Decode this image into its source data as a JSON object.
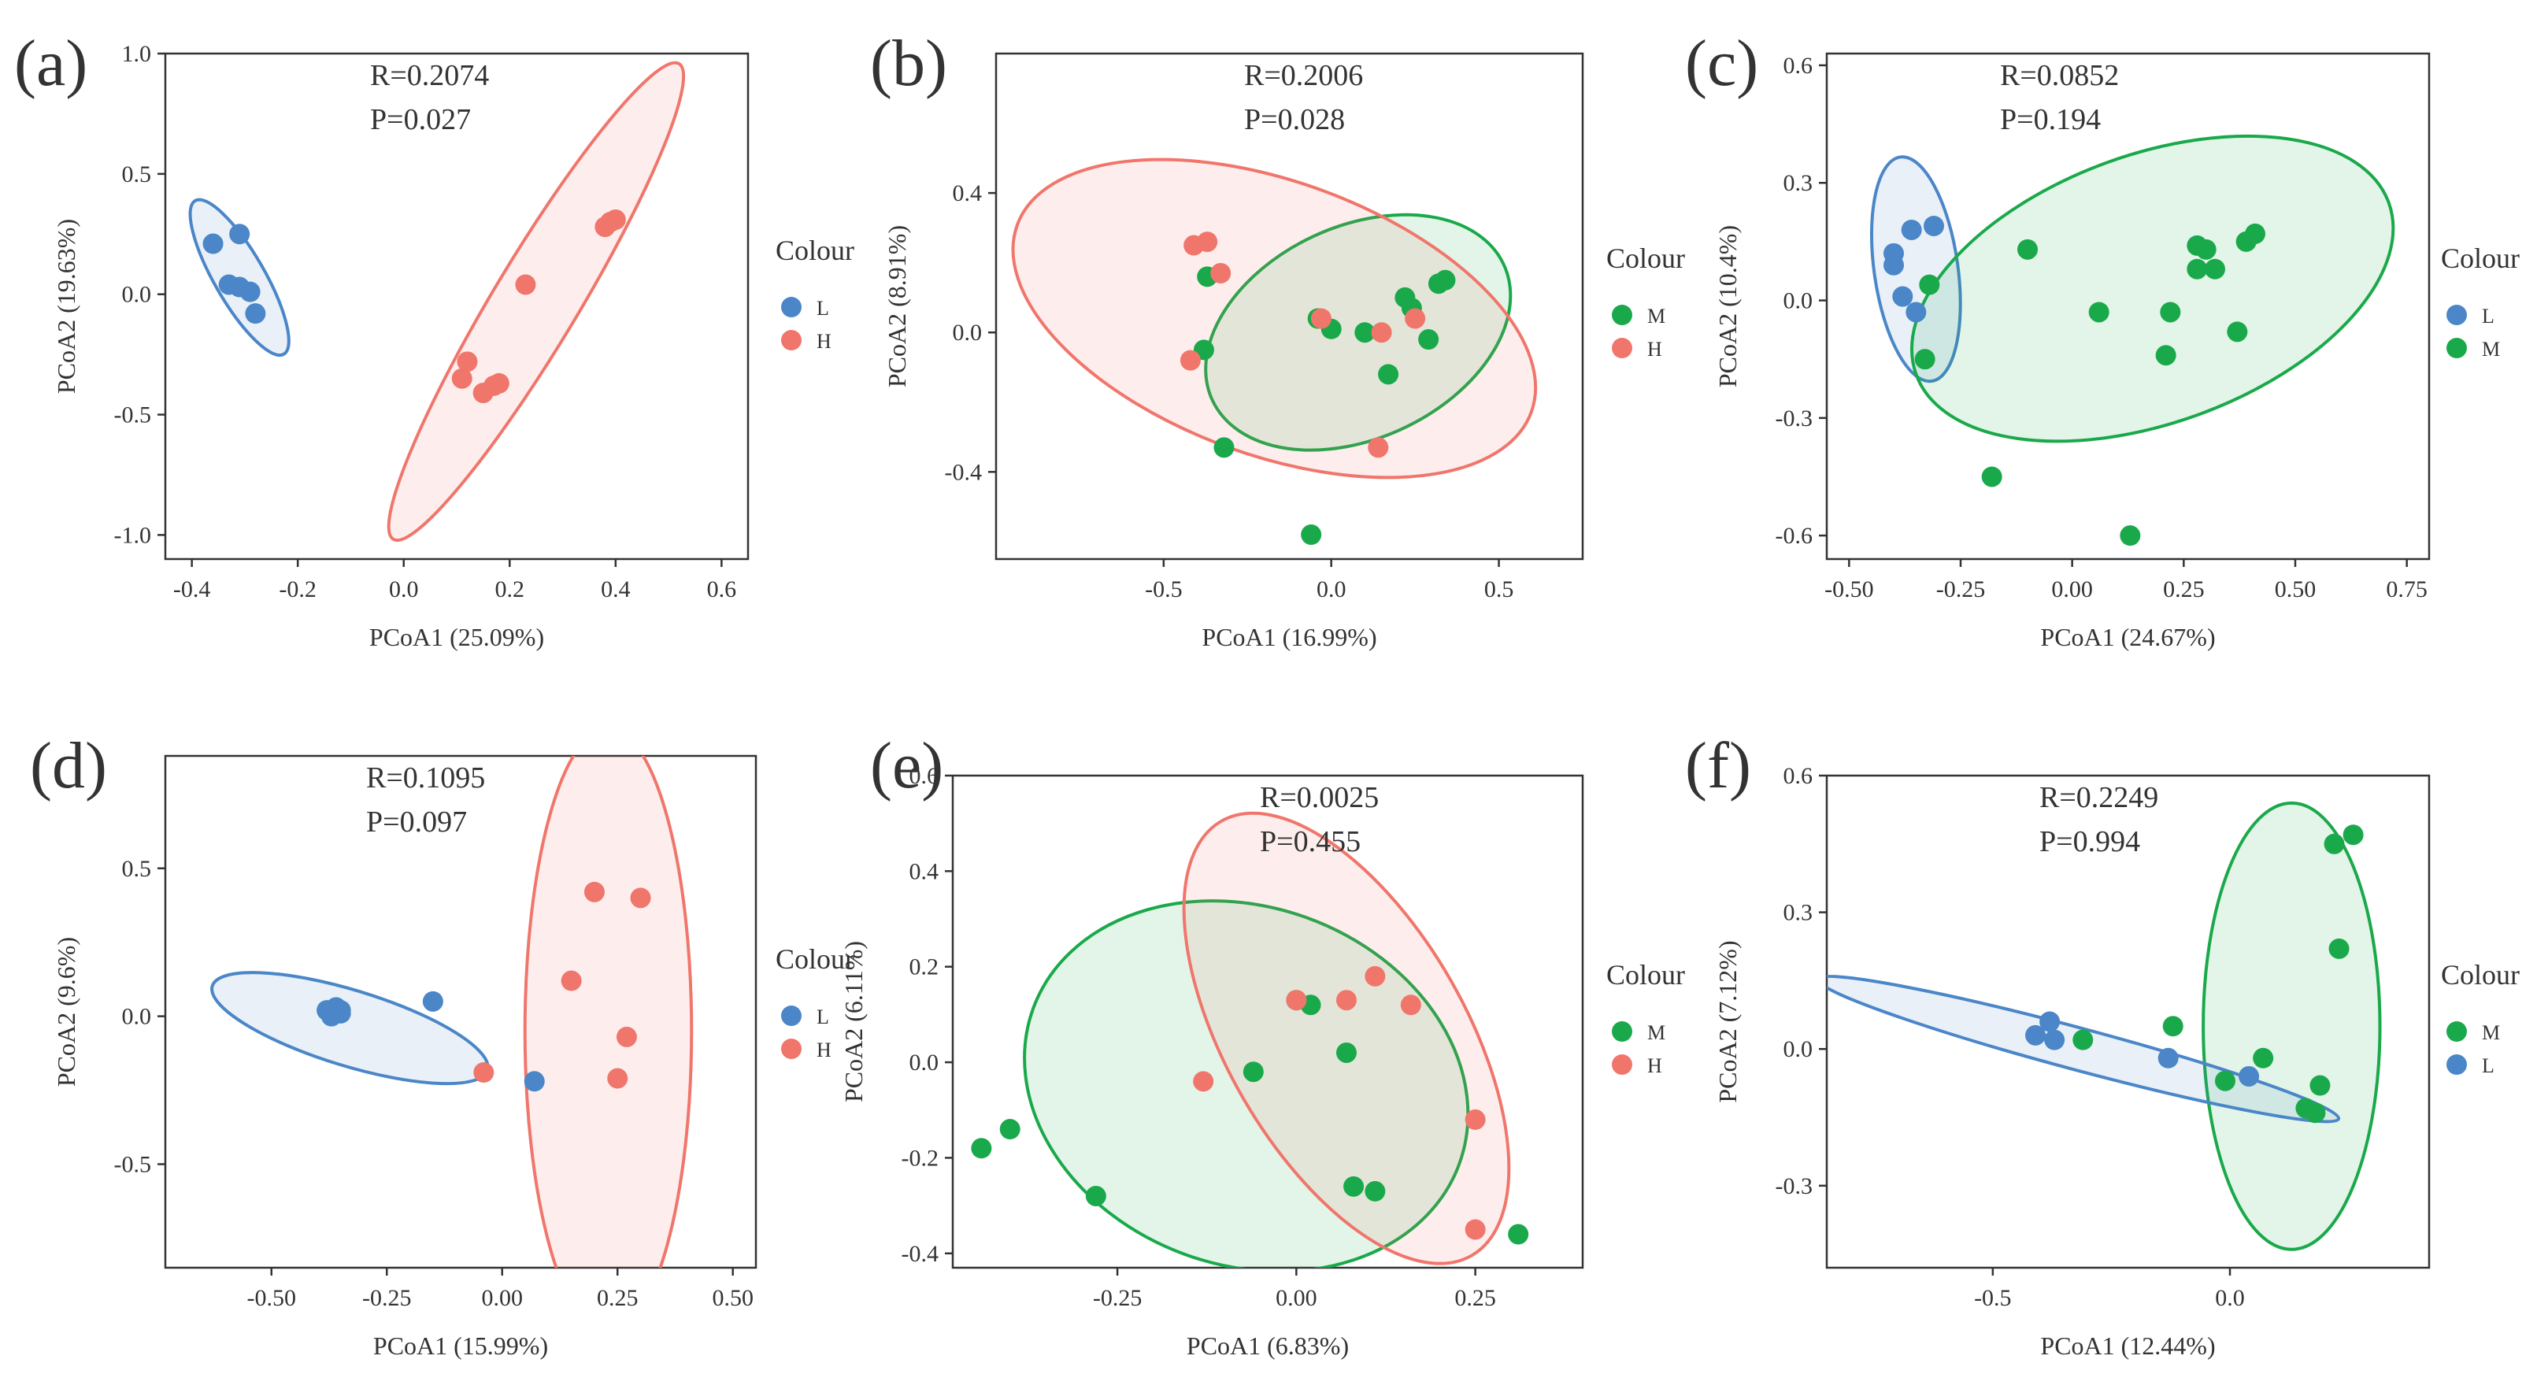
{
  "colours": {
    "L": "#4a86c8",
    "H": "#f0766c",
    "M": "#1aa94a"
  },
  "chart_data": [
    {
      "type": "scatter",
      "panel_label": "(a)",
      "stats": [
        "R=0.2074",
        "P=0.027"
      ],
      "xlabel": "PCoA1 (25.09%)",
      "ylabel": "PCoA2 (19.63%)",
      "xlim": [
        -0.45,
        0.65
      ],
      "ylim": [
        -1.1,
        1.0
      ],
      "xticks": [
        -0.4,
        -0.2,
        0.0,
        0.2,
        0.4,
        0.6
      ],
      "xtick_labels": [
        "-0.4",
        "-0.2",
        "0.0",
        "0.2",
        "0.4",
        "0.6"
      ],
      "yticks": [
        -1.0,
        -0.5,
        0.0,
        0.5,
        1.0
      ],
      "ytick_labels": [
        "-1.0",
        "-0.5",
        "0.0",
        "0.5",
        "1.0"
      ],
      "legend_title": "Colour",
      "legend": [
        "L",
        "H"
      ],
      "series": [
        {
          "name": "L",
          "color": "#4a86c8",
          "ellipse": {
            "cx": -0.31,
            "cy": 0.07,
            "rx": 0.065,
            "ry": 0.23,
            "angle": 30
          },
          "points": [
            [
              -0.36,
              0.21
            ],
            [
              -0.31,
              0.25
            ],
            [
              -0.33,
              0.04
            ],
            [
              -0.31,
              0.03
            ],
            [
              -0.29,
              0.01
            ],
            [
              -0.28,
              -0.08
            ]
          ]
        },
        {
          "name": "H",
          "color": "#f0766c",
          "ellipse": {
            "cx": 0.25,
            "cy": -0.03,
            "rx": 0.72,
            "ry": 0.11,
            "angle": 59
          },
          "points": [
            [
              0.39,
              0.3
            ],
            [
              0.38,
              0.28
            ],
            [
              0.4,
              0.31
            ],
            [
              0.23,
              0.04
            ],
            [
              0.12,
              -0.28
            ],
            [
              0.11,
              -0.35
            ],
            [
              0.15,
              -0.41
            ],
            [
              0.18,
              -0.37
            ],
            [
              0.17,
              -0.38
            ]
          ]
        }
      ]
    },
    {
      "type": "scatter",
      "panel_label": "(b)",
      "stats": [
        "R=0.2006",
        "P=0.028"
      ],
      "xlabel": "PCoA1 (16.99%)",
      "ylabel": "PCoA2 (8.91%)",
      "xlim": [
        -1.0,
        0.75
      ],
      "ylim": [
        -0.65,
        0.8
      ],
      "xticks": [
        -0.5,
        0.0,
        0.5
      ],
      "xtick_labels": [
        "-0.5",
        "0.0",
        "0.5"
      ],
      "yticks": [
        -0.4,
        0.0,
        0.4
      ],
      "ytick_labels": [
        "-0.4",
        "0.0",
        "0.4"
      ],
      "legend_title": "Colour",
      "legend": [
        "M",
        "H"
      ],
      "series": [
        {
          "name": "M",
          "color": "#1aa94a",
          "ellipse": {
            "cx": 0.08,
            "cy": 0.0,
            "rx": 0.47,
            "ry": 0.31,
            "angle": 25
          },
          "points": [
            [
              -0.37,
              0.16
            ],
            [
              -0.38,
              -0.05
            ],
            [
              -0.32,
              -0.33
            ],
            [
              -0.06,
              -0.58
            ],
            [
              -0.04,
              0.04
            ],
            [
              0.0,
              0.01
            ],
            [
              0.1,
              0.0
            ],
            [
              0.17,
              -0.12
            ],
            [
              0.22,
              0.1
            ],
            [
              0.24,
              0.07
            ],
            [
              0.29,
              -0.02
            ],
            [
              0.32,
              0.14
            ],
            [
              0.34,
              0.15
            ]
          ]
        },
        {
          "name": "H",
          "color": "#f0766c",
          "ellipse": {
            "cx": -0.17,
            "cy": 0.04,
            "rx": 0.8,
            "ry": 0.4,
            "angle": -20
          },
          "points": [
            [
              -0.41,
              0.25
            ],
            [
              -0.37,
              0.26
            ],
            [
              -0.33,
              0.17
            ],
            [
              -0.42,
              -0.08
            ],
            [
              -0.03,
              0.04
            ],
            [
              0.15,
              0.0
            ],
            [
              0.25,
              0.04
            ],
            [
              0.14,
              -0.33
            ]
          ]
        }
      ]
    },
    {
      "type": "scatter",
      "panel_label": "(c)",
      "stats": [
        "R=0.0852",
        "P=0.194"
      ],
      "xlabel": "PCoA1 (24.67%)",
      "ylabel": "PCoA2 (10.4%)",
      "xlim": [
        -0.55,
        0.8
      ],
      "ylim": [
        -0.66,
        0.63
      ],
      "xticks": [
        -0.5,
        -0.25,
        0.0,
        0.25,
        0.5,
        0.75
      ],
      "xtick_labels": [
        "-0.50",
        "-0.25",
        "0.00",
        "0.25",
        "0.50",
        "0.75"
      ],
      "yticks": [
        -0.6,
        -0.3,
        0.0,
        0.3,
        0.6
      ],
      "ytick_labels": [
        "-0.6",
        "-0.3",
        "0.0",
        "0.3",
        "0.6"
      ],
      "legend_title": "Colour",
      "legend": [
        "L",
        "M"
      ],
      "series": [
        {
          "name": "L",
          "color": "#4a86c8",
          "ellipse": {
            "cx": -0.35,
            "cy": 0.08,
            "rx": 0.1,
            "ry": 0.27,
            "angle": 8
          },
          "points": [
            [
              -0.4,
              0.12
            ],
            [
              -0.4,
              0.09
            ],
            [
              -0.38,
              0.01
            ],
            [
              -0.36,
              0.18
            ],
            [
              -0.35,
              -0.03
            ],
            [
              -0.31,
              0.19
            ]
          ]
        },
        {
          "name": "M",
          "color": "#1aa94a",
          "ellipse": {
            "cx": 0.18,
            "cy": 0.03,
            "rx": 0.6,
            "ry": 0.32,
            "angle": 20
          },
          "points": [
            [
              -0.32,
              0.04
            ],
            [
              -0.33,
              -0.15
            ],
            [
              -0.18,
              -0.45
            ],
            [
              -0.1,
              0.13
            ],
            [
              0.06,
              -0.03
            ],
            [
              0.13,
              -0.6
            ],
            [
              0.21,
              -0.14
            ],
            [
              0.22,
              -0.03
            ],
            [
              0.28,
              0.14
            ],
            [
              0.3,
              0.13
            ],
            [
              0.28,
              0.08
            ],
            [
              0.32,
              0.08
            ],
            [
              0.37,
              -0.08
            ],
            [
              0.39,
              0.15
            ],
            [
              0.41,
              0.17
            ]
          ]
        }
      ]
    },
    {
      "type": "scatter",
      "panel_label": "(d)",
      "stats": [
        "R=0.1095",
        "P=0.097"
      ],
      "xlabel": "PCoA1 (15.99%)",
      "ylabel": "PCoA2 (9.6%)",
      "xlim": [
        -0.73,
        0.55
      ],
      "ylim": [
        -0.85,
        0.88
      ],
      "xticks": [
        -0.5,
        -0.25,
        0.0,
        0.25,
        0.5
      ],
      "xtick_labels": [
        "-0.50",
        "-0.25",
        "0.00",
        "0.25",
        "0.50"
      ],
      "yticks": [
        -0.5,
        0.0,
        0.5
      ],
      "ytick_labels": [
        "-0.5",
        "0.0",
        "0.5"
      ],
      "legend_title": "Colour",
      "legend": [
        "L",
        "H"
      ],
      "series": [
        {
          "name": "L",
          "color": "#4a86c8",
          "ellipse": {
            "cx": -0.33,
            "cy": -0.04,
            "rx": 0.38,
            "ry": 0.1,
            "angle": -17
          },
          "points": [
            [
              -0.38,
              0.02
            ],
            [
              -0.36,
              0.03
            ],
            [
              -0.35,
              0.01
            ],
            [
              -0.37,
              0.0
            ],
            [
              -0.35,
              0.02
            ],
            [
              -0.15,
              0.05
            ],
            [
              0.07,
              -0.22
            ]
          ]
        },
        {
          "name": "H",
          "color": "#f0766c",
          "ellipse": {
            "cx": 0.23,
            "cy": -0.05,
            "rx": 0.22,
            "ry": 0.8,
            "angle": 0
          },
          "points": [
            [
              0.2,
              0.42
            ],
            [
              0.3,
              0.4
            ],
            [
              0.15,
              0.12
            ],
            [
              0.27,
              -0.07
            ],
            [
              0.25,
              -0.21
            ],
            [
              -0.04,
              -0.19
            ]
          ]
        }
      ]
    },
    {
      "type": "scatter",
      "panel_label": "(e)",
      "stats": [
        "R=0.0025",
        "P=0.455"
      ],
      "xlabel": "PCoA1 (6.83%)",
      "ylabel": "PCoA2 (6.11%)",
      "xlim": [
        -0.48,
        0.4
      ],
      "ylim": [
        -0.43,
        0.6
      ],
      "xticks": [
        -0.25,
        0.0,
        0.25
      ],
      "xtick_labels": [
        "-0.25",
        "0.00",
        "0.25"
      ],
      "yticks": [
        -0.4,
        -0.2,
        0.0,
        0.2,
        0.4,
        0.6
      ],
      "ytick_labels": [
        "-0.4",
        "-0.2",
        "0.0",
        "0.2",
        "0.4",
        "0.6"
      ],
      "legend_title": "Colour",
      "legend": [
        "M",
        "H"
      ],
      "series": [
        {
          "name": "M",
          "color": "#1aa94a",
          "ellipse": {
            "cx": -0.07,
            "cy": -0.05,
            "rx": 0.38,
            "ry": 0.3,
            "angle": -20
          },
          "points": [
            [
              -0.44,
              -0.18
            ],
            [
              -0.4,
              -0.14
            ],
            [
              -0.28,
              -0.28
            ],
            [
              -0.06,
              -0.02
            ],
            [
              0.02,
              0.12
            ],
            [
              0.0,
              0.13
            ],
            [
              0.07,
              0.02
            ],
            [
              0.08,
              -0.26
            ],
            [
              0.11,
              -0.27
            ],
            [
              0.31,
              -0.36
            ]
          ]
        },
        {
          "name": "H",
          "color": "#f0766c",
          "ellipse": {
            "cx": 0.07,
            "cy": 0.05,
            "rx": 0.42,
            "ry": 0.2,
            "angle": -60
          },
          "points": [
            [
              -0.13,
              -0.04
            ],
            [
              0.0,
              0.13
            ],
            [
              0.07,
              0.13
            ],
            [
              0.11,
              0.18
            ],
            [
              0.16,
              0.12
            ],
            [
              0.25,
              -0.12
            ],
            [
              0.25,
              -0.35
            ]
          ]
        }
      ]
    },
    {
      "type": "scatter",
      "panel_label": "(f)",
      "stats": [
        "R=0.2249",
        "P=0.994"
      ],
      "xlabel": "PCoA1 (12.44%)",
      "ylabel": "PCoA2 (7.12%)",
      "xlim": [
        -0.85,
        0.42
      ],
      "ylim": [
        -0.48,
        0.6
      ],
      "xticks": [
        -0.5,
        0.0
      ],
      "xtick_labels": [
        "-0.5",
        "0.0"
      ],
      "yticks": [
        -0.3,
        0.0,
        0.3,
        0.6
      ],
      "ytick_labels": [
        "-0.3",
        "0.0",
        "0.3",
        "0.6"
      ],
      "legend_title": "Colour",
      "legend": [
        "M",
        "L"
      ],
      "series": [
        {
          "name": "M",
          "color": "#1aa94a",
          "ellipse": {
            "cx": 0.13,
            "cy": 0.05,
            "rx": 0.19,
            "ry": 0.48,
            "angle": 0
          },
          "points": [
            [
              -0.31,
              0.02
            ],
            [
              -0.12,
              0.05
            ],
            [
              -0.01,
              -0.07
            ],
            [
              0.07,
              -0.02
            ],
            [
              0.16,
              -0.13
            ],
            [
              0.18,
              -0.14
            ],
            [
              0.19,
              -0.08
            ],
            [
              0.22,
              0.45
            ],
            [
              0.26,
              0.47
            ],
            [
              0.23,
              0.22
            ]
          ]
        },
        {
          "name": "L",
          "color": "#4a86c8",
          "ellipse": {
            "cx": -0.32,
            "cy": 0.0,
            "rx": 0.58,
            "ry": 0.045,
            "angle": -15
          },
          "points": [
            [
              -0.41,
              0.03
            ],
            [
              -0.38,
              0.06
            ],
            [
              -0.37,
              0.02
            ],
            [
              -0.13,
              -0.02
            ],
            [
              0.04,
              -0.06
            ]
          ]
        }
      ]
    }
  ]
}
